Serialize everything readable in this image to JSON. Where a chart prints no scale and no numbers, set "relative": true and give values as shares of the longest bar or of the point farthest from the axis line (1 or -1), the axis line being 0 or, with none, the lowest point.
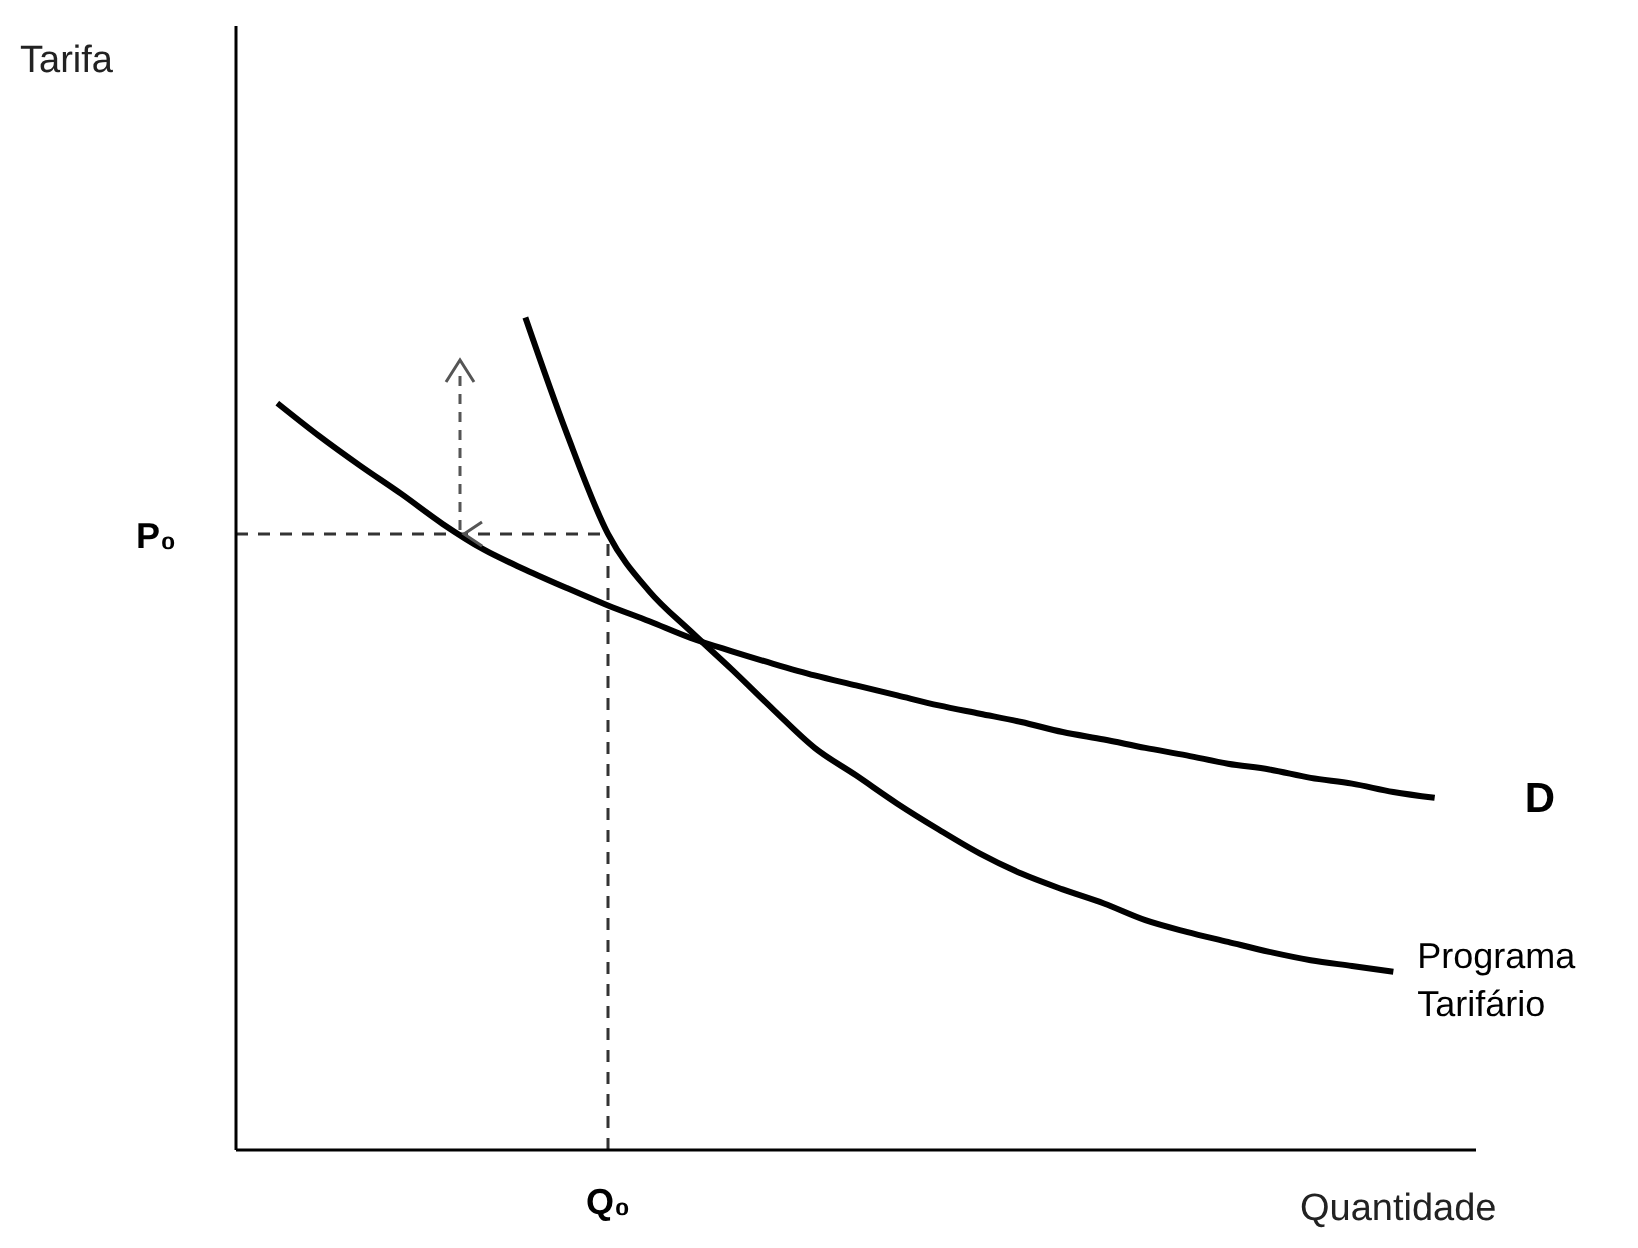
{
  "chart_data": {
    "type": "line",
    "relative": true,
    "xlabel": "Quantidade",
    "marker": "none",
    "line_style": "solid",
    "categories": [
      null,
      null,
      null,
      null,
      null,
      null,
      null,
      null,
      null,
      null,
      null,
      null,
      null,
      null,
      null,
      null,
      null,
      null,
      null,
      null,
      null,
      null,
      null,
      null,
      null,
      null,
      null,
      null,
      null,
      null,
      null
    ],
    "series": [
      {
        "name": "D",
        "color": "#000000",
        "values": [
          null,
          0.897,
          0.858,
          0.822,
          0.788,
          0.752,
          0.721,
          0.697,
          0.675,
          0.654,
          0.635,
          0.615,
          0.599,
          0.584,
          0.57,
          0.558,
          0.546,
          0.534,
          0.524,
          0.514,
          0.502,
          0.493,
          0.483,
          0.474,
          0.464,
          0.457,
          0.447,
          0.44,
          0.43,
          0.423,
          null
        ]
      },
      {
        "name": "Programa Tarifário",
        "color": "#000000",
        "values": [
          null,
          null,
          null,
          null,
          null,
          null,
          null,
          1,
          0.861,
          0.74,
          0.671,
          0.623,
          0.577,
          0.529,
          0.483,
          0.45,
          0.416,
          0.385,
          0.356,
          0.332,
          0.313,
          0.296,
          0.276,
          0.262,
          0.25,
          0.238,
          0.228,
          0.221,
          0.214,
          null,
          null
        ]
      }
    ],
    "ref_lines": [
      {
        "axis": "y",
        "value": 0.74,
        "label": "P₀",
        "line_style": "dashed",
        "color": "#333333"
      }
    ],
    "annotations": [
      "Q₀",
      "Tarifa"
    ]
  }
}
